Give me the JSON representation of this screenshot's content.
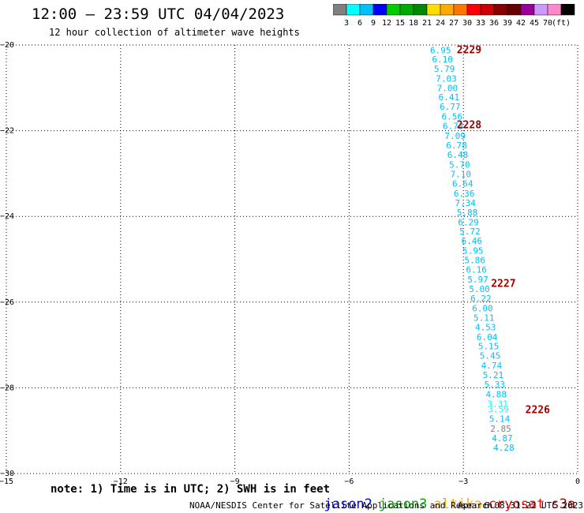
{
  "header": {
    "title": "12:00 – 23:59 UTC 04/04/2023",
    "subtitle": "12 hour collection of altimeter wave heights"
  },
  "legend": {
    "colors": [
      "#808080",
      "#00ffff",
      "#00bfff",
      "#0000ff",
      "#00cc00",
      "#00aa00",
      "#008800",
      "#ffdd00",
      "#ffaa00",
      "#ff7700",
      "#ff0000",
      "#cc0000",
      "#880000",
      "#660000",
      "#990099",
      "#cc99ff",
      "#ff88cc",
      "#000000"
    ],
    "labels": [
      "3",
      "6",
      "9",
      "12",
      "15",
      "18",
      "21",
      "24",
      "27",
      "30",
      "33",
      "36",
      "39",
      "42",
      "45",
      "70",
      "(ft)"
    ]
  },
  "chart_data": {
    "type": "scatter",
    "xlim": [
      -15,
      0
    ],
    "ylim": [
      -30,
      -20
    ],
    "x_ticks": [
      -15,
      -12,
      -9,
      -6,
      -3,
      0
    ],
    "y_ticks": [
      -20,
      -22,
      -24,
      -26,
      -28,
      -30
    ],
    "grid": true,
    "points": [
      {
        "x": -3.6,
        "y": -20.12,
        "label": "6.95",
        "color": "#00bfff"
      },
      {
        "x": -3.55,
        "y": -20.33,
        "label": "6.10",
        "color": "#00bfff"
      },
      {
        "x": -3.5,
        "y": -20.55,
        "label": "5.79",
        "color": "#00bfff"
      },
      {
        "x": -3.45,
        "y": -20.78,
        "label": "7.03",
        "color": "#00bfff"
      },
      {
        "x": -3.42,
        "y": -21.0,
        "label": "7.00",
        "color": "#00bfff"
      },
      {
        "x": -3.38,
        "y": -21.22,
        "label": "6.41",
        "color": "#00bfff"
      },
      {
        "x": -3.35,
        "y": -21.44,
        "label": "6.77",
        "color": "#00bfff"
      },
      {
        "x": -3.3,
        "y": -21.67,
        "label": "6.56",
        "color": "#00bfff"
      },
      {
        "x": -3.27,
        "y": -21.89,
        "label": "6.73",
        "color": "#00bfff"
      },
      {
        "x": -3.22,
        "y": -22.12,
        "label": "7.09",
        "color": "#00bfff"
      },
      {
        "x": -3.18,
        "y": -22.34,
        "label": "6.78",
        "color": "#00bfff"
      },
      {
        "x": -3.15,
        "y": -22.56,
        "label": "6.48",
        "color": "#00bfff"
      },
      {
        "x": -3.1,
        "y": -22.79,
        "label": "5.70",
        "color": "#00bfff"
      },
      {
        "x": -3.07,
        "y": -23.01,
        "label": "7.10",
        "color": "#00bfff"
      },
      {
        "x": -3.02,
        "y": -23.23,
        "label": "6.64",
        "color": "#00bfff"
      },
      {
        "x": -2.98,
        "y": -23.46,
        "label": "6.36",
        "color": "#00bfff"
      },
      {
        "x": -2.95,
        "y": -23.68,
        "label": "7.34",
        "color": "#00bfff"
      },
      {
        "x": -2.9,
        "y": -23.9,
        "label": "5.88",
        "color": "#00bfff"
      },
      {
        "x": -2.87,
        "y": -24.13,
        "label": "6.29",
        "color": "#00bfff"
      },
      {
        "x": -2.83,
        "y": -24.35,
        "label": "5.72",
        "color": "#00bfff"
      },
      {
        "x": -2.78,
        "y": -24.57,
        "label": "6.46",
        "color": "#00bfff"
      },
      {
        "x": -2.75,
        "y": -24.8,
        "label": "5.95",
        "color": "#00bfff"
      },
      {
        "x": -2.7,
        "y": -25.02,
        "label": "5.86",
        "color": "#00bfff"
      },
      {
        "x": -2.66,
        "y": -25.24,
        "label": "6.16",
        "color": "#00bfff"
      },
      {
        "x": -2.62,
        "y": -25.47,
        "label": "5.97",
        "color": "#00bfff"
      },
      {
        "x": -2.58,
        "y": -25.69,
        "label": "5.00",
        "color": "#00bfff"
      },
      {
        "x": -2.54,
        "y": -25.91,
        "label": "6.22",
        "color": "#00bfff"
      },
      {
        "x": -2.5,
        "y": -26.14,
        "label": "6.00",
        "color": "#00bfff"
      },
      {
        "x": -2.46,
        "y": -26.36,
        "label": "5.11",
        "color": "#00bfff"
      },
      {
        "x": -2.42,
        "y": -26.58,
        "label": "4.53",
        "color": "#00bfff"
      },
      {
        "x": -2.38,
        "y": -26.81,
        "label": "6.04",
        "color": "#00bfff"
      },
      {
        "x": -2.34,
        "y": -27.03,
        "label": "5.15",
        "color": "#00bfff"
      },
      {
        "x": -2.3,
        "y": -27.25,
        "label": "5.45",
        "color": "#00bfff"
      },
      {
        "x": -2.26,
        "y": -27.48,
        "label": "4.74",
        "color": "#00bfff"
      },
      {
        "x": -2.22,
        "y": -27.7,
        "label": "5.21",
        "color": "#00bfff"
      },
      {
        "x": -2.18,
        "y": -27.92,
        "label": "5.33",
        "color": "#00bfff"
      },
      {
        "x": -2.14,
        "y": -28.15,
        "label": "4.88",
        "color": "#00bfff"
      },
      {
        "x": -2.1,
        "y": -28.37,
        "label": "3.31",
        "color": "#00ffff"
      },
      {
        "x": -2.08,
        "y": -28.5,
        "label": "3.59",
        "color": "#00ffff"
      },
      {
        "x": -2.05,
        "y": -28.72,
        "label": "5.14",
        "color": "#00bfff"
      },
      {
        "x": -2.02,
        "y": -28.95,
        "label": "2.85",
        "color": "#808080"
      },
      {
        "x": -1.98,
        "y": -29.17,
        "label": "4.87",
        "color": "#00bfff"
      },
      {
        "x": -1.94,
        "y": -29.39,
        "label": "4.28",
        "color": "#00bfff"
      }
    ],
    "annotations": [
      {
        "x": -2.85,
        "y": -20.1,
        "text": "2229"
      },
      {
        "x": -2.85,
        "y": -21.85,
        "text": "2228"
      },
      {
        "x": -1.95,
        "y": -25.55,
        "text": "2227"
      },
      {
        "x": -1.05,
        "y": -28.5,
        "text": "2226"
      }
    ]
  },
  "footer": {
    "note": "note: 1) Time is in UTC; 2) SWH is in feet",
    "missions": [
      {
        "label": "jason2",
        "color": "#0000ff"
      },
      {
        "label": "jason3",
        "color": "#00aa00"
      },
      {
        "label": "altika",
        "color": "#ffaa00"
      },
      {
        "label": "cryosat",
        "color": "#ff0000"
      },
      {
        "label": "s3a",
        "color": "#990000"
      }
    ],
    "credit": "NOAA/NESDIS Center for Satellite Applications and Research",
    "timestamp": "Apr  6 08:31:22 UTC 2023"
  },
  "annotation_color": "#990000"
}
